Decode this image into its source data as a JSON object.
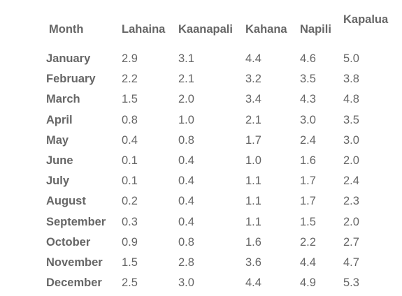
{
  "table": {
    "headers": [
      "Month",
      "Lahaina",
      "Kaanapali",
      "Kahana",
      "Napili",
      "Kapalua"
    ],
    "rows": [
      {
        "month": "January",
        "values": [
          "2.9",
          "3.1",
          "4.4",
          "4.6",
          "5.0"
        ]
      },
      {
        "month": "February",
        "values": [
          "2.2",
          "2.1",
          "3.2",
          "3.5",
          "3.8"
        ]
      },
      {
        "month": "March",
        "values": [
          "1.5",
          "2.0",
          "3.4",
          "4.3",
          "4.8"
        ]
      },
      {
        "month": "April",
        "values": [
          "0.8",
          "1.0",
          "2.1",
          "3.0",
          "3.5"
        ]
      },
      {
        "month": "May",
        "values": [
          "0.4",
          "0.8",
          "1.7",
          "2.4",
          "3.0"
        ]
      },
      {
        "month": "June",
        "values": [
          "0.1",
          "0.4",
          "1.0",
          "1.6",
          "2.0"
        ]
      },
      {
        "month": "July",
        "values": [
          "0.1",
          "0.4",
          "1.1",
          "1.7",
          "2.4"
        ]
      },
      {
        "month": "August",
        "values": [
          "0.2",
          "0.4",
          "1.1",
          "1.7",
          "2.3"
        ]
      },
      {
        "month": "September",
        "values": [
          "0.3",
          "0.4",
          "1.1",
          "1.5",
          "2.0"
        ]
      },
      {
        "month": "October",
        "values": [
          "0.9",
          "0.8",
          "1.6",
          "2.2",
          "2.7"
        ]
      },
      {
        "month": "November",
        "values": [
          "1.5",
          "2.8",
          "3.6",
          "4.4",
          "4.7"
        ]
      },
      {
        "month": "December",
        "values": [
          "2.5",
          "3.0",
          "4.4",
          "4.9",
          "5.3"
        ]
      }
    ]
  }
}
